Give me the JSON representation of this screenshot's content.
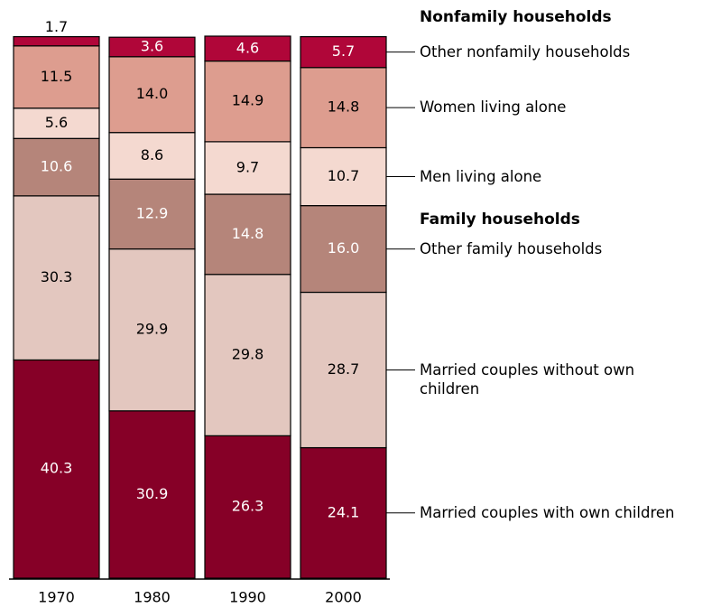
{
  "chart_data": {
    "type": "stacked_bar",
    "categories": [
      "1970",
      "1980",
      "1990",
      "2000"
    ],
    "group_titles": [
      "Nonfamily households",
      "Family households"
    ],
    "series": [
      {
        "name": "Married couples with own children",
        "color": "#860027",
        "values": [
          40.3,
          30.9,
          26.3,
          24.1
        ],
        "value_labels": [
          "40.3",
          "30.9",
          "26.3",
          "24.1"
        ]
      },
      {
        "name": "Married couples without own children",
        "color": "#e3c7bf",
        "values": [
          30.3,
          29.9,
          29.8,
          28.7
        ],
        "value_labels": [
          "30.3",
          "29.9",
          "29.8",
          "28.7"
        ]
      },
      {
        "name": "Other family households",
        "color": "#b5857a",
        "values": [
          10.6,
          12.9,
          14.8,
          16.0
        ],
        "value_labels": [
          "10.6",
          "12.9",
          "14.8",
          "16.0"
        ]
      },
      {
        "name": "Men living alone",
        "color": "#f4d9d0",
        "values": [
          5.6,
          8.6,
          9.7,
          10.7
        ],
        "value_labels": [
          "5.6",
          "8.6",
          "9.7",
          "10.7"
        ]
      },
      {
        "name": "Women living alone",
        "color": "#dd9d8f",
        "values": [
          11.5,
          14.0,
          14.9,
          14.8
        ],
        "value_labels": [
          "11.5",
          "14.0",
          "14.9",
          "14.8"
        ]
      },
      {
        "name": "Other nonfamily households",
        "color": "#b00639",
        "values": [
          1.7,
          3.6,
          4.6,
          5.7
        ],
        "value_labels": [
          "1.7",
          "3.6",
          "4.6",
          "5.7"
        ]
      }
    ]
  }
}
